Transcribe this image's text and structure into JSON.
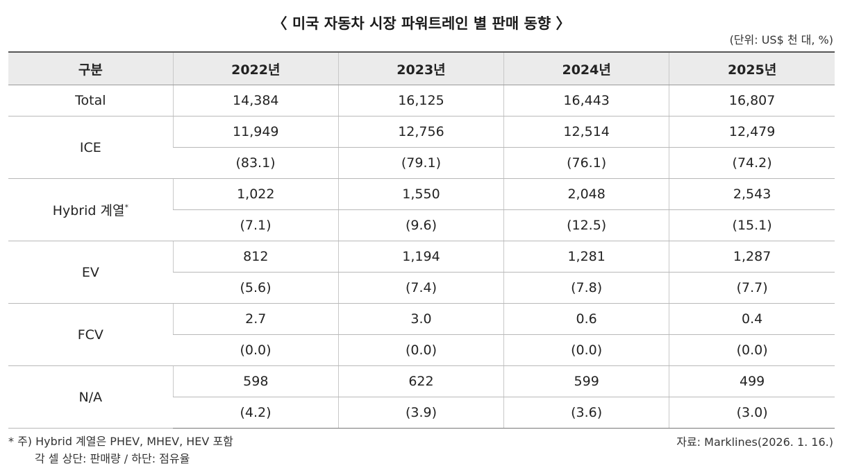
{
  "title": "〈 미국 자동차 시장 파워트레인 별 판매 동향 〉",
  "unit": "(단위: US$ 천 대, %)",
  "headers": [
    "구분",
    "2022년",
    "2023년",
    "2024년",
    "2025년"
  ],
  "rows": [
    {
      "label": "Total",
      "values": [
        "14,384",
        "16,125",
        "16,443",
        "16,807"
      ]
    },
    {
      "label": "ICE",
      "values": [
        "11,949",
        "12,756",
        "12,514",
        "12,479"
      ],
      "shares": [
        "(83.1)",
        "(79.1)",
        "(76.1)",
        "(74.2)"
      ]
    },
    {
      "label": "Hybrid 계열",
      "mark": "*",
      "values": [
        "1,022",
        "1,550",
        "2,048",
        "2,543"
      ],
      "shares": [
        "(7.1)",
        "(9.6)",
        "(12.5)",
        "(15.1)"
      ]
    },
    {
      "label": "EV",
      "values": [
        "812",
        "1,194",
        "1,281",
        "1,287"
      ],
      "shares": [
        "(5.6)",
        "(7.4)",
        "(7.8)",
        "(7.7)"
      ]
    },
    {
      "label": "FCV",
      "values": [
        "2.7",
        "3.0",
        "0.6",
        "0.4"
      ],
      "shares": [
        "(0.0)",
        "(0.0)",
        "(0.0)",
        "(0.0)"
      ]
    },
    {
      "label": "N/A",
      "values": [
        "598",
        "622",
        "599",
        "499"
      ],
      "shares": [
        "(4.2)",
        "(3.9)",
        "(3.6)",
        "(3.0)"
      ]
    }
  ],
  "notes": {
    "line1": "* 주) Hybrid 계열은 PHEV, MHEV, HEV 포함",
    "line2": "각 셀 상단: 판매량 / 하단: 점유율"
  },
  "source": "자료: Marklines(2026. 1. 16.)"
}
